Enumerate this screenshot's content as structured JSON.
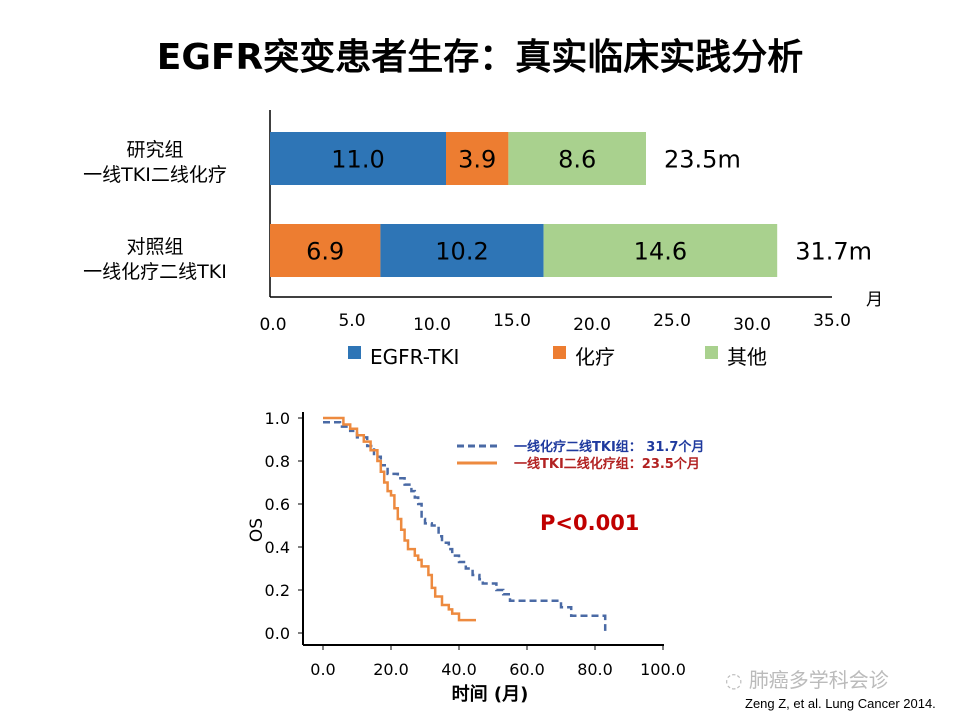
{
  "title": "EGFR突变患者生存：真实临床实践分析",
  "chart_data": [
    {
      "type": "bar",
      "stacked": true,
      "orientation": "horizontal",
      "categories": [
        "研究组\n一线TKI二线化疗",
        "对照组\n一线化疗二线TKI"
      ],
      "category_lines": [
        [
          "研究组",
          "一线TKI二线化疗"
        ],
        [
          "对照组",
          "一线化疗二线TKI"
        ]
      ],
      "segments": [
        [
          {
            "name": "EGFR-TKI",
            "value": 11.0,
            "label": "11.0"
          },
          {
            "name": "化疗",
            "value": 3.9,
            "label": "3.9"
          },
          {
            "name": "其他",
            "value": 8.6,
            "label": "8.6"
          }
        ],
        [
          {
            "name": "化疗",
            "value": 6.9,
            "label": "6.9"
          },
          {
            "name": "EGFR-TKI",
            "value": 10.2,
            "label": "10.2"
          },
          {
            "name": "其他",
            "value": 14.6,
            "label": "14.6"
          }
        ]
      ],
      "totals": [
        "23.5m",
        "31.7m"
      ],
      "xlabel": "月",
      "xlim": [
        0,
        35
      ],
      "xticks": [
        "0.0",
        "5.0",
        "10.0",
        "15.0",
        "20.0",
        "25.0",
        "30.0",
        "35.0"
      ],
      "legend": [
        {
          "name": "EGFR-TKI",
          "color": "#2e75b6"
        },
        {
          "name": "化疗",
          "color": "#ed7d31"
        },
        {
          "name": "其他",
          "color": "#a9d18e"
        }
      ],
      "legend_position": "bottom"
    },
    {
      "type": "line",
      "subtype": "kaplan-meier",
      "xlabel": "时间 (月)",
      "ylabel": "OS",
      "xlim": [
        0,
        100
      ],
      "ylim": [
        0,
        1
      ],
      "xticks": [
        "0.0",
        "20.0",
        "40.0",
        "60.0",
        "80.0",
        "100.0"
      ],
      "yticks": [
        "0.0",
        "0.2",
        "0.4",
        "0.6",
        "0.8",
        "1.0"
      ],
      "series": [
        {
          "name": "一线化疗二线TKI组： 31.7个月",
          "color": "#4a6aa5",
          "dash": true,
          "points": [
            [
              0,
              0.98
            ],
            [
              3,
              0.98
            ],
            [
              5,
              0.96
            ],
            [
              8,
              0.94
            ],
            [
              10,
              0.91
            ],
            [
              13,
              0.87
            ],
            [
              15,
              0.82
            ],
            [
              17,
              0.78
            ],
            [
              19,
              0.74
            ],
            [
              22,
              0.72
            ],
            [
              24,
              0.69
            ],
            [
              26,
              0.66
            ],
            [
              27,
              0.63
            ],
            [
              28,
              0.6
            ],
            [
              29,
              0.53
            ],
            [
              30,
              0.51
            ],
            [
              32,
              0.5
            ],
            [
              34,
              0.45
            ],
            [
              35,
              0.42
            ],
            [
              37,
              0.39
            ],
            [
              38,
              0.36
            ],
            [
              40,
              0.33
            ],
            [
              42,
              0.3
            ],
            [
              44,
              0.27
            ],
            [
              46,
              0.25
            ],
            [
              47,
              0.23
            ],
            [
              50,
              0.23
            ],
            [
              51,
              0.2
            ],
            [
              53,
              0.18
            ],
            [
              55,
              0.15
            ],
            [
              69,
              0.15
            ],
            [
              70,
              0.12
            ],
            [
              73,
              0.08
            ],
            [
              82,
              0.08
            ],
            [
              83,
              0.01
            ]
          ]
        },
        {
          "name": "一线TKI二线化疗组：23.5个月",
          "color": "#ed8a3f",
          "dash": false,
          "points": [
            [
              0,
              1.0
            ],
            [
              5,
              1.0
            ],
            [
              6,
              0.97
            ],
            [
              8,
              0.95
            ],
            [
              10,
              0.92
            ],
            [
              12,
              0.89
            ],
            [
              14,
              0.85
            ],
            [
              16,
              0.8
            ],
            [
              17,
              0.75
            ],
            [
              18,
              0.7
            ],
            [
              19,
              0.66
            ],
            [
              20,
              0.64
            ],
            [
              21,
              0.58
            ],
            [
              22,
              0.53
            ],
            [
              23,
              0.48
            ],
            [
              24,
              0.43
            ],
            [
              25,
              0.39
            ],
            [
              27,
              0.36
            ],
            [
              28,
              0.34
            ],
            [
              29,
              0.31
            ],
            [
              31,
              0.27
            ],
            [
              32,
              0.21
            ],
            [
              33,
              0.17
            ],
            [
              35,
              0.13
            ],
            [
              37,
              0.11
            ],
            [
              38,
              0.09
            ],
            [
              40,
              0.06
            ],
            [
              45,
              0.06
            ]
          ]
        }
      ],
      "legend_label_colors": [
        "#1f3a9e",
        "#b22222"
      ],
      "annotation": "P<0.001",
      "annotation_color": "#c00000"
    }
  ],
  "watermark": "肺癌多学科会诊",
  "citation": "Zeng Z, et al. Lung Cancer 2014."
}
